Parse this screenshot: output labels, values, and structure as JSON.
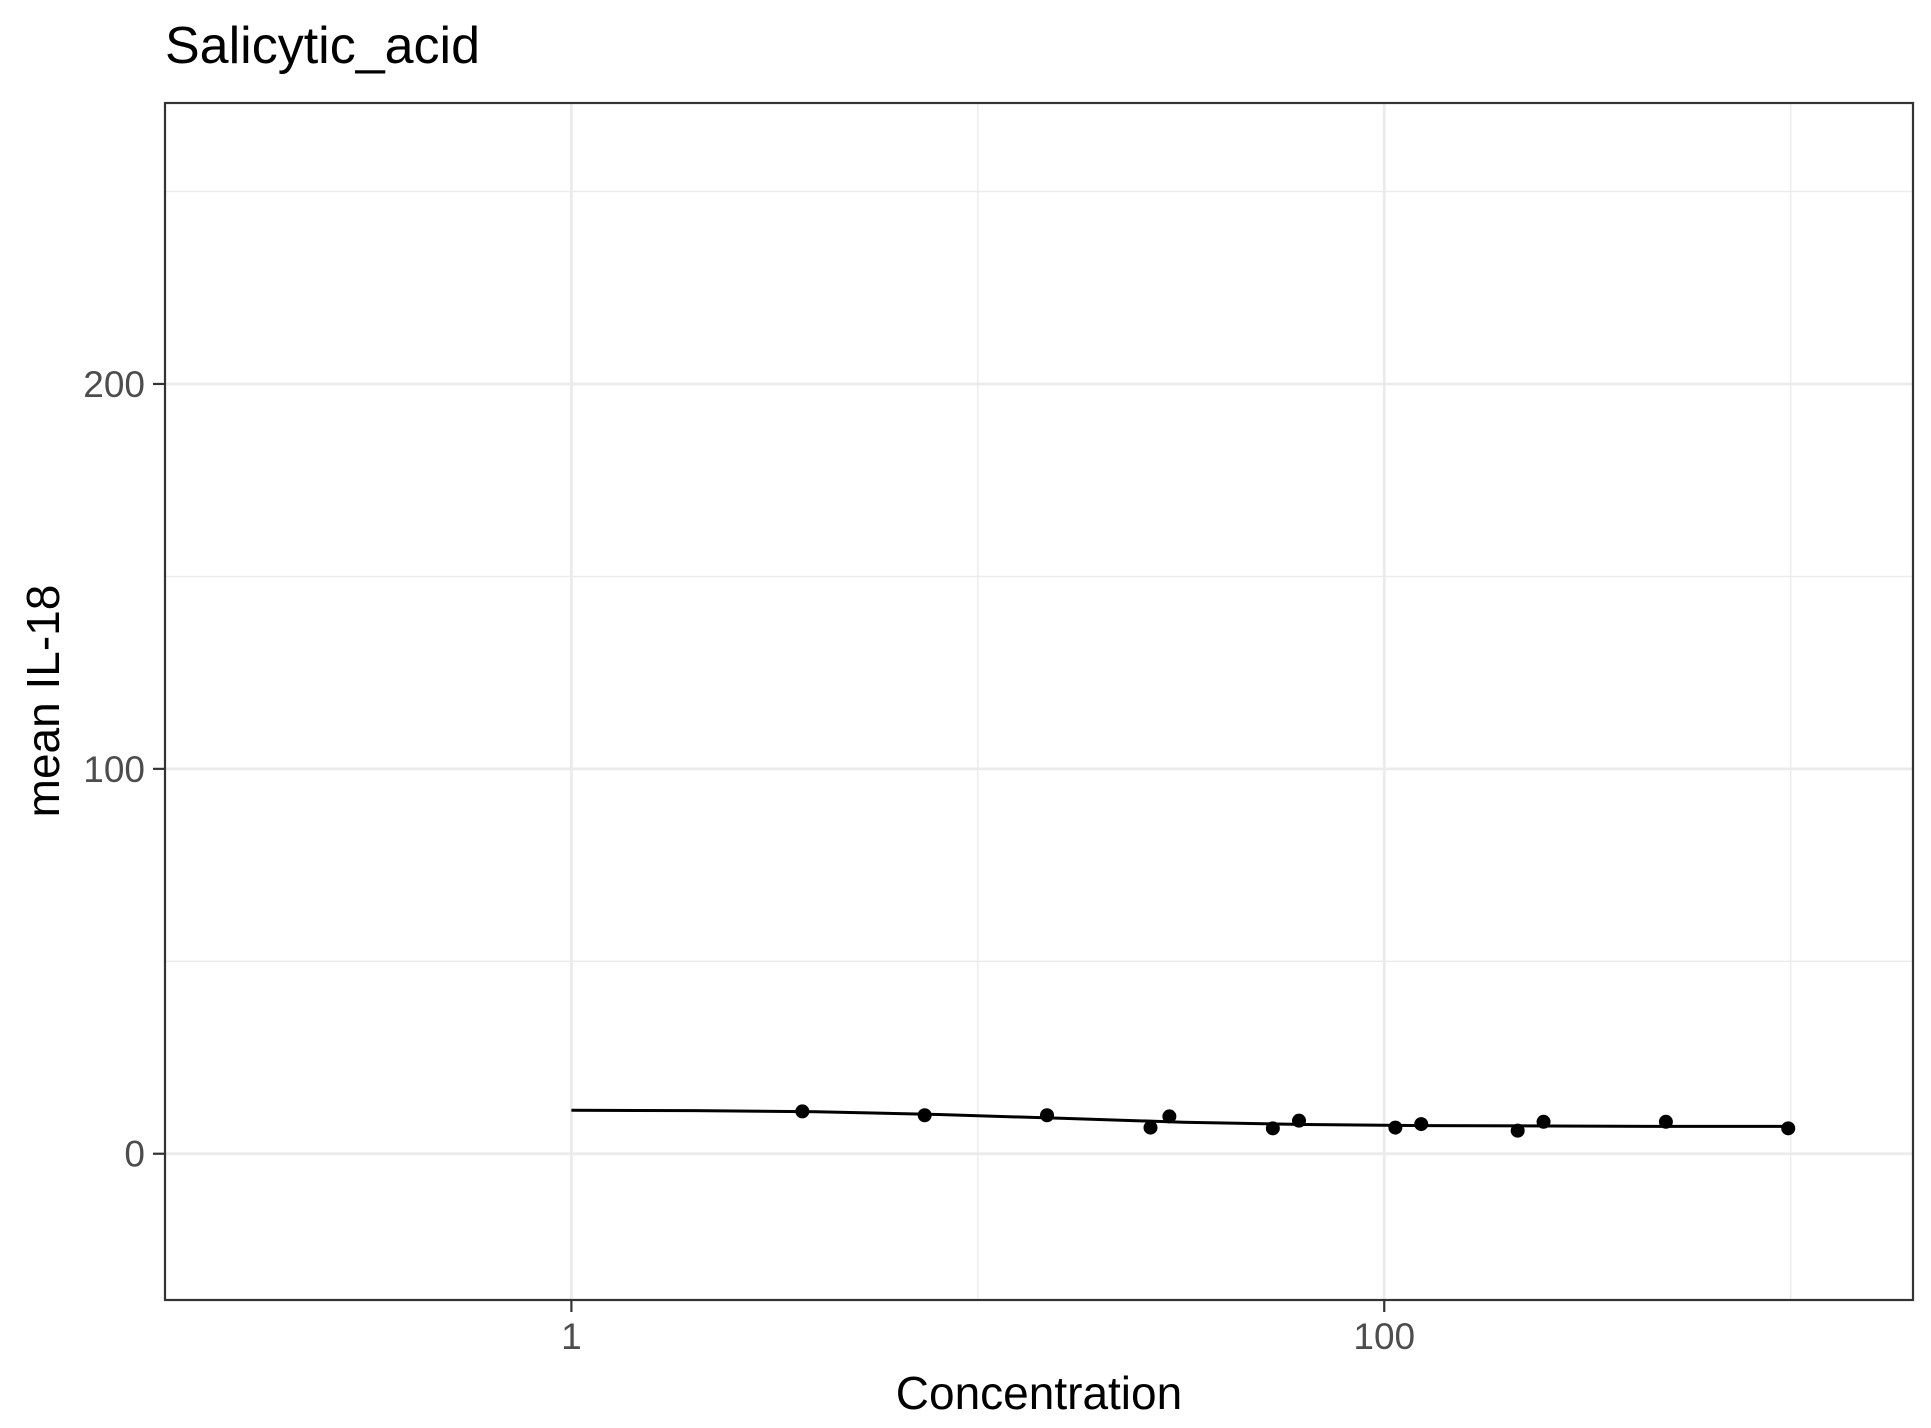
{
  "chart_data": {
    "type": "scatter",
    "title": "Salicytic_acid",
    "xlabel": "Concentration",
    "ylabel": "mean IL-18",
    "x_scale": "log10",
    "xlim": [
      0.1,
      2000
    ],
    "ylim": [
      -38,
      273
    ],
    "x_ticks": [
      1,
      100
    ],
    "x_tick_labels": [
      "1",
      "100"
    ],
    "x_minor_breaks": [
      0.1,
      10,
      1000
    ],
    "y_ticks": [
      0,
      100,
      200
    ],
    "y_tick_labels": [
      "0",
      "100",
      "200"
    ],
    "y_minor_breaks": [
      50,
      150,
      250
    ],
    "grid": true,
    "points": [
      {
        "x": 3.7,
        "y": 11.0
      },
      {
        "x": 7.4,
        "y": 10.0
      },
      {
        "x": 14.8,
        "y": 10.0
      },
      {
        "x": 26.6,
        "y": 6.8
      },
      {
        "x": 29.6,
        "y": 9.7
      },
      {
        "x": 53.2,
        "y": 6.6
      },
      {
        "x": 61.7,
        "y": 8.6
      },
      {
        "x": 106.5,
        "y": 6.8
      },
      {
        "x": 123.3,
        "y": 7.7
      },
      {
        "x": 213,
        "y": 6.0
      },
      {
        "x": 246.6,
        "y": 8.3
      },
      {
        "x": 493.2,
        "y": 8.3
      },
      {
        "x": 986.4,
        "y": 6.6
      }
    ],
    "fit_line": {
      "x": [
        1,
        2,
        4,
        8,
        16,
        32,
        64,
        128,
        256,
        512,
        986.4
      ],
      "y": [
        11.3,
        11.2,
        10.9,
        10.2,
        9.2,
        8.2,
        7.6,
        7.3,
        7.2,
        7.1,
        7.1
      ]
    },
    "colors": {
      "points": "#000000",
      "line": "#000000",
      "grid": "#ebebeb",
      "panel_border": "#333333",
      "tick_label": "#4d4d4d"
    }
  }
}
